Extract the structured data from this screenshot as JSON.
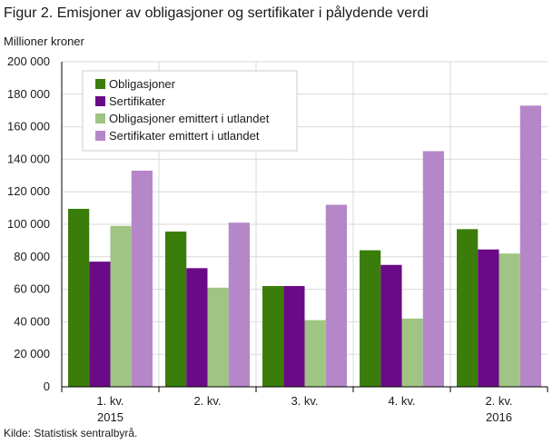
{
  "title": "Figur 2. Emisjoner av obligasjoner og sertifikater i pålydende verdi",
  "source": "Kilde: Statistisk sentralbyrå.",
  "colors": {
    "obligasjoner": "#3a7d0a",
    "sertifikater": "#6a0a86",
    "obligasjoner_utland": "#a0c483",
    "sertifikater_utland": "#b587c8"
  },
  "chart_data": {
    "type": "bar",
    "title": "Figur 2. Emisjoner av obligasjoner og sertifikater i pålydende verdi",
    "ylabel": "Millioner  kroner",
    "xlabel": "",
    "ylim": [
      0,
      200000
    ],
    "yticks": [
      "0",
      "20 000",
      "40 000",
      "60 000",
      "80 000",
      "100 000",
      "120 000",
      "140 000",
      "160 000",
      "180 000",
      "200 000"
    ],
    "categories": [
      {
        "label": "1. kv.",
        "year": "2015"
      },
      {
        "label": "2. kv.",
        "year": ""
      },
      {
        "label": "3. kv.",
        "year": ""
      },
      {
        "label": "4. kv.",
        "year": ""
      },
      {
        "label": "2. kv.",
        "year": "2016"
      }
    ],
    "series": [
      {
        "name": "Obligasjoner",
        "color": "#3a7d0a",
        "values": [
          109500,
          95500,
          62000,
          84000,
          97000
        ]
      },
      {
        "name": "Sertifikater",
        "color": "#6a0a86",
        "values": [
          77000,
          73000,
          62000,
          75000,
          84500
        ]
      },
      {
        "name": "Obligasjoner emittert i utlandet",
        "color": "#a0c483",
        "values": [
          99000,
          61000,
          41000,
          42000,
          82000
        ]
      },
      {
        "name": "Sertifikater emittert i utlandet",
        "color": "#b587c8",
        "values": [
          133000,
          101000,
          112000,
          145000,
          173000
        ]
      }
    ],
    "grid": true,
    "legend_position": "top-left"
  }
}
